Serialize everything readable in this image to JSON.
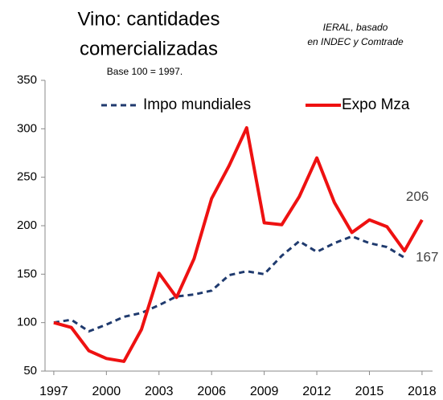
{
  "chart_data": {
    "type": "line",
    "title": [
      "Vino: cantidades",
      "comercializadas"
    ],
    "subtitle": "Base 100 = 1997.",
    "source": [
      "IERAL, basado",
      "en INDEC y Comtrade"
    ],
    "x": [
      1997,
      1998,
      1999,
      2000,
      2001,
      2002,
      2003,
      2004,
      2005,
      2006,
      2007,
      2008,
      2009,
      2010,
      2011,
      2012,
      2013,
      2014,
      2015,
      2016,
      2017,
      2018
    ],
    "series": [
      {
        "name": "Impo mundiales",
        "color": "#1f3a6e",
        "dashed": true,
        "values": [
          100,
          103,
          91,
          98,
          106,
          110,
          118,
          127,
          129,
          133,
          149,
          153,
          150,
          169,
          184,
          173,
          182,
          189,
          182,
          178,
          167,
          null
        ]
      },
      {
        "name": "Expo Mza",
        "color": "#ee1111",
        "dashed": false,
        "values": [
          100,
          95,
          71,
          63,
          60,
          93,
          151,
          126,
          166,
          228,
          262,
          301,
          203,
          201,
          230,
          270,
          224,
          193,
          206,
          199,
          174,
          206
        ]
      }
    ],
    "xlim": [
      1996.5,
      2018.6
    ],
    "xticks": [
      1997,
      2000,
      2003,
      2006,
      2009,
      2012,
      2015,
      2018
    ],
    "ylim": [
      50,
      350
    ],
    "yticks": [
      50,
      100,
      150,
      200,
      250,
      300,
      350
    ]
  }
}
